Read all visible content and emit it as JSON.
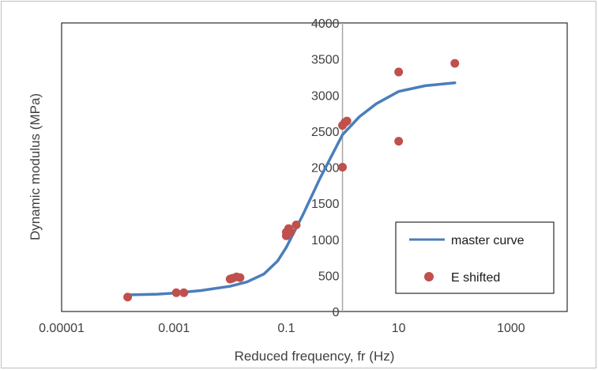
{
  "chart_data": {
    "type": "scatter",
    "title": "",
    "xlabel": "Reduced frequency, fr (Hz)",
    "ylabel": "Dynamic modulus (MPa)",
    "x_scale": "log",
    "xlim": [
      1e-05,
      10000
    ],
    "ylim": [
      0,
      4000
    ],
    "x_ticks": [
      {
        "value": 1e-05,
        "label": "0.00001"
      },
      {
        "value": 0.001,
        "label": "0.001"
      },
      {
        "value": 0.1,
        "label": "0.1"
      },
      {
        "value": 10,
        "label": "10"
      },
      {
        "value": 1000,
        "label": "1000"
      }
    ],
    "y_ticks": [
      {
        "value": 0,
        "label": "0"
      },
      {
        "value": 500,
        "label": "500"
      },
      {
        "value": 1000,
        "label": "1000"
      },
      {
        "value": 1500,
        "label": "1500"
      },
      {
        "value": 2000,
        "label": "2000"
      },
      {
        "value": 2500,
        "label": "2500"
      },
      {
        "value": 3000,
        "label": "3000"
      },
      {
        "value": 3500,
        "label": "3500"
      },
      {
        "value": 4000,
        "label": "4000"
      }
    ],
    "grid": false,
    "legend_position": "bottom-right",
    "series": [
      {
        "name": "master curve",
        "kind": "line",
        "color": "#4a7ebb",
        "points": [
          {
            "x": 0.00015,
            "y": 230
          },
          {
            "x": 0.0005,
            "y": 240
          },
          {
            "x": 0.001,
            "y": 255
          },
          {
            "x": 0.003,
            "y": 290
          },
          {
            "x": 0.01,
            "y": 350
          },
          {
            "x": 0.02,
            "y": 410
          },
          {
            "x": 0.04,
            "y": 520
          },
          {
            "x": 0.07,
            "y": 700
          },
          {
            "x": 0.1,
            "y": 890
          },
          {
            "x": 0.2,
            "y": 1350
          },
          {
            "x": 0.4,
            "y": 1850
          },
          {
            "x": 1,
            "y": 2450
          },
          {
            "x": 2,
            "y": 2700
          },
          {
            "x": 4,
            "y": 2880
          },
          {
            "x": 10,
            "y": 3050
          },
          {
            "x": 30,
            "y": 3130
          },
          {
            "x": 100,
            "y": 3170
          }
        ]
      },
      {
        "name": "E shifted",
        "kind": "scatter",
        "color": "#c0504d",
        "points": [
          {
            "x": 0.00015,
            "y": 200
          },
          {
            "x": 0.0011,
            "y": 260
          },
          {
            "x": 0.0015,
            "y": 260
          },
          {
            "x": 0.01,
            "y": 450
          },
          {
            "x": 0.011,
            "y": 460
          },
          {
            "x": 0.013,
            "y": 480
          },
          {
            "x": 0.015,
            "y": 470
          },
          {
            "x": 0.1,
            "y": 1050
          },
          {
            "x": 0.1,
            "y": 1100
          },
          {
            "x": 0.11,
            "y": 1150
          },
          {
            "x": 0.12,
            "y": 1100
          },
          {
            "x": 0.15,
            "y": 1200
          },
          {
            "x": 1,
            "y": 2000
          },
          {
            "x": 1,
            "y": 2580
          },
          {
            "x": 1.1,
            "y": 2620
          },
          {
            "x": 1.2,
            "y": 2640
          },
          {
            "x": 10,
            "y": 3320
          },
          {
            "x": 10,
            "y": 2360
          },
          {
            "x": 100,
            "y": 3440
          }
        ]
      }
    ]
  }
}
